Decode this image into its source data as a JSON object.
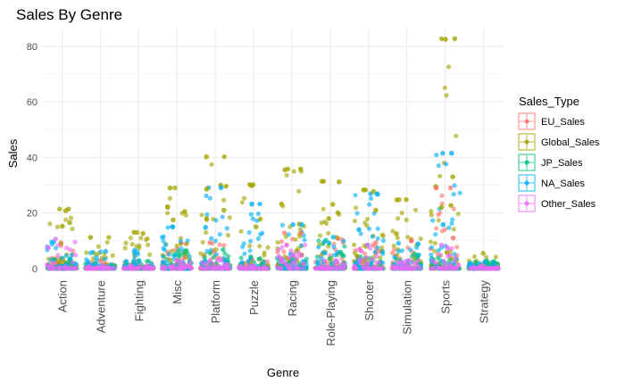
{
  "chart_data": {
    "type": "scatter",
    "title": "Sales By Genre",
    "xlabel": "Genre",
    "ylabel": "Sales",
    "ylim": [
      -1,
      87
    ],
    "yticks": [
      0,
      20,
      40,
      60,
      80
    ],
    "grid": true,
    "legend_title": "Sales_Type",
    "legend_position": "right",
    "categories": [
      "Action",
      "Adventure",
      "Fighting",
      "Misc",
      "Platform",
      "Puzzle",
      "Racing",
      "Role-Playing",
      "Shooter",
      "Simulation",
      "Sports",
      "Strategy"
    ],
    "series": [
      {
        "name": "EU_Sales",
        "color": "#F8766D",
        "max": [
          9.3,
          2.8,
          2.5,
          9.2,
          9.3,
          3.0,
          12.8,
          10.9,
          9.3,
          10.0,
          29.0,
          1.6
        ]
      },
      {
        "name": "Global_Sales",
        "color": "#A3A500",
        "max": [
          21.4,
          11.2,
          13.0,
          29.0,
          40.2,
          30.2,
          35.8,
          31.4,
          28.3,
          24.8,
          82.7,
          5.5
        ]
      },
      {
        "name": "JP_Sales",
        "color": "#00BF7D",
        "max": [
          3.5,
          2.0,
          2.9,
          6.5,
          6.8,
          4.2,
          4.1,
          10.2,
          4.2,
          5.3,
          3.8,
          2.8
        ]
      },
      {
        "name": "NA_Sales",
        "color": "#00B0F6",
        "max": [
          9.6,
          6.2,
          6.6,
          15.0,
          29.1,
          23.2,
          15.8,
          11.3,
          26.9,
          9.1,
          41.5,
          2.2
        ]
      },
      {
        "name": "Other_Sales",
        "color": "#E76BF3",
        "max": [
          10.6,
          1.0,
          1.0,
          2.9,
          3.0,
          1.0,
          8.5,
          2.9,
          8.5,
          3.0,
          8.5,
          0.8
        ]
      }
    ],
    "highlight_points": {
      "Global_Sales": [
        [
          0,
          21.4
        ],
        [
          0,
          20.8
        ],
        [
          0,
          16.5
        ],
        [
          0,
          15.2
        ],
        [
          1,
          11.2
        ],
        [
          2,
          13.0
        ],
        [
          2,
          12.6
        ],
        [
          3,
          29.0
        ],
        [
          3,
          22.0
        ],
        [
          3,
          20.5
        ],
        [
          3,
          17.5
        ],
        [
          4,
          40.2
        ],
        [
          4,
          30.0
        ],
        [
          4,
          28.6
        ],
        [
          4,
          21.0
        ],
        [
          4,
          18.0
        ],
        [
          5,
          30.2
        ],
        [
          5,
          29.8
        ],
        [
          5,
          15.0
        ],
        [
          6,
          35.8
        ],
        [
          6,
          35.5
        ],
        [
          6,
          23.2
        ],
        [
          6,
          16.0
        ],
        [
          7,
          31.4
        ],
        [
          7,
          31.2
        ],
        [
          7,
          23.1
        ],
        [
          7,
          20.1
        ],
        [
          7,
          18.0
        ],
        [
          8,
          28.3
        ],
        [
          8,
          27.7
        ],
        [
          8,
          21.0
        ],
        [
          9,
          24.8
        ],
        [
          9,
          24.7
        ],
        [
          9,
          12.5
        ],
        [
          10,
          82.7
        ],
        [
          10,
          82.5
        ],
        [
          10,
          33.0
        ],
        [
          10,
          29.5
        ],
        [
          10,
          22.7
        ],
        [
          10,
          22.0
        ]
      ],
      "NA_Sales": [
        [
          3,
          15.0
        ],
        [
          4,
          29.1
        ],
        [
          4,
          14.8
        ],
        [
          5,
          23.2
        ],
        [
          6,
          15.8
        ],
        [
          8,
          26.9
        ],
        [
          8,
          14.0
        ],
        [
          10,
          41.5
        ],
        [
          10,
          15.8
        ]
      ],
      "EU_Sales": [
        [
          10,
          29.0
        ],
        [
          10,
          11.0
        ],
        [
          6,
          12.8
        ],
        [
          9,
          10.0
        ]
      ]
    }
  }
}
